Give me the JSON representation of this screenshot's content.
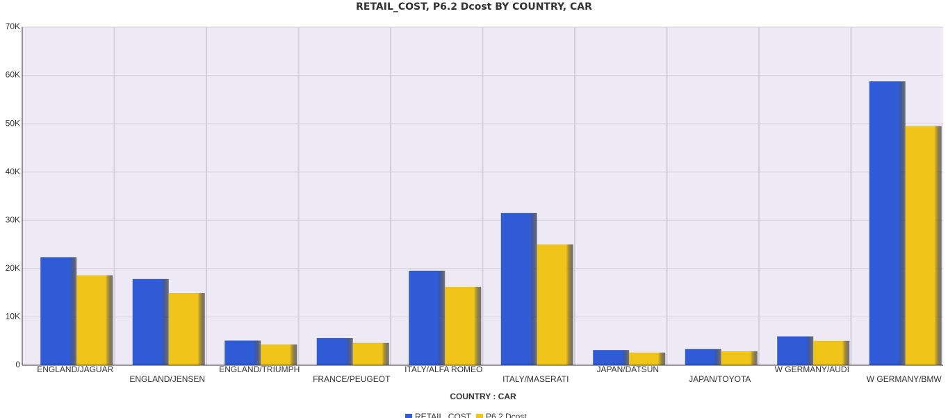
{
  "chart_data": {
    "type": "bar",
    "title": "RETAIL_COST, P6.2 Dcost BY COUNTRY, CAR",
    "x_label": "COUNTRY : CAR",
    "categories": [
      "ENGLAND/JAGUAR",
      "ENGLAND/JENSEN",
      "ENGLAND/TRIUMPH",
      "FRANCE/PEUGEOT",
      "ITALY/ALFA ROMEO",
      "ITALY/MASERATI",
      "JAPAN/DATSUN",
      "JAPAN/TOYOTA",
      "W GERMANY/AUDI",
      "W GERMANY/BMW"
    ],
    "series": [
      {
        "name": "RETAIL_COST",
        "color": "#2f5bd6",
        "values": [
          22369,
          17850,
          5100,
          5610,
          19565,
          31500,
          3139,
          3339,
          5970,
          58762
        ]
      },
      {
        "name": "P6.2 Dcost",
        "color": "#f0c419",
        "values": [
          18621,
          14940,
          4292,
          4631,
          16235,
          25000,
          2626,
          2886,
          5063,
          49500
        ]
      }
    ],
    "ylim": [
      0,
      70000
    ],
    "yticks": [
      0,
      {
        "value": 10000,
        "label": "10K"
      },
      {
        "value": 20000,
        "label": "20K"
      },
      {
        "value": 30000,
        "label": "30K"
      },
      {
        "value": 40000,
        "label": "40K"
      },
      {
        "value": 50000,
        "label": "50K"
      },
      {
        "value": 60000,
        "label": "60K"
      },
      {
        "value": 70000,
        "label": "70K"
      }
    ],
    "grid": true
  }
}
